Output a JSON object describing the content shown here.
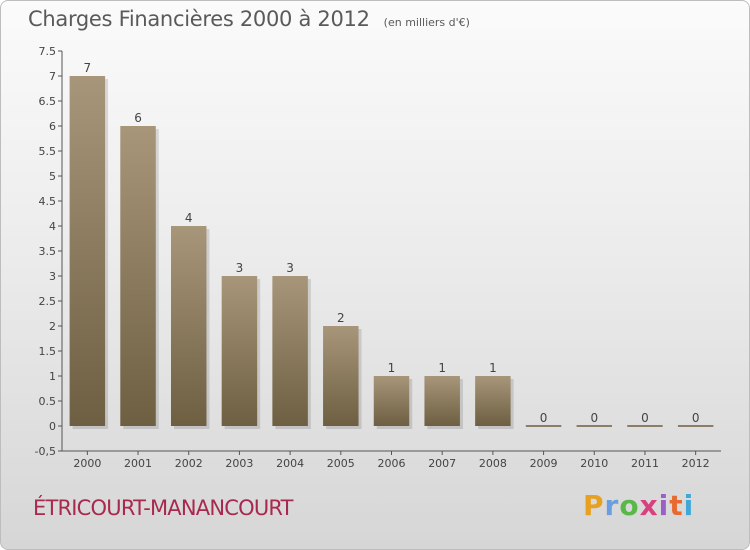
{
  "header": {
    "title": "Charges Financières 2000 à 2012",
    "unit": "(en milliers d'€)"
  },
  "commune": "ÉTRICOURT-MANANCOURT",
  "logo": {
    "letters": [
      "P",
      "r",
      "o",
      "x",
      "i",
      "t",
      "i"
    ],
    "colors": [
      "#e8a020",
      "#6a9ee0",
      "#58b848",
      "#d84080",
      "#9a60c8",
      "#e86a30",
      "#40a8d8"
    ]
  },
  "colors": {
    "bar_dark": "#6e5f42",
    "bar_light": "#a8967a",
    "axis": "#555555"
  },
  "chart_data": {
    "type": "bar",
    "title": "Charges Financières 2000 à 2012",
    "subtitle": "(en milliers d'€)",
    "categories": [
      "2000",
      "2001",
      "2002",
      "2003",
      "2004",
      "2005",
      "2006",
      "2007",
      "2008",
      "2009",
      "2010",
      "2011",
      "2012"
    ],
    "values": [
      7,
      6,
      4,
      3,
      3,
      2,
      1,
      1,
      1,
      0,
      0,
      0,
      0
    ],
    "ylim": [
      -0.5,
      7.5
    ],
    "yticks": [
      "-0,5",
      "0",
      "0.5",
      "1",
      "1.5",
      "2",
      "2.5",
      "3",
      "3.5",
      "4",
      "4.5",
      "5",
      "5.5",
      "6",
      "6.5",
      "7",
      "7.5"
    ],
    "ytick_values": [
      -0.5,
      0,
      0.5,
      1,
      1.5,
      2,
      2.5,
      3,
      3.5,
      4,
      4.5,
      5,
      5.5,
      6,
      6.5,
      7,
      7.5
    ],
    "grid": false,
    "legend": "none"
  }
}
